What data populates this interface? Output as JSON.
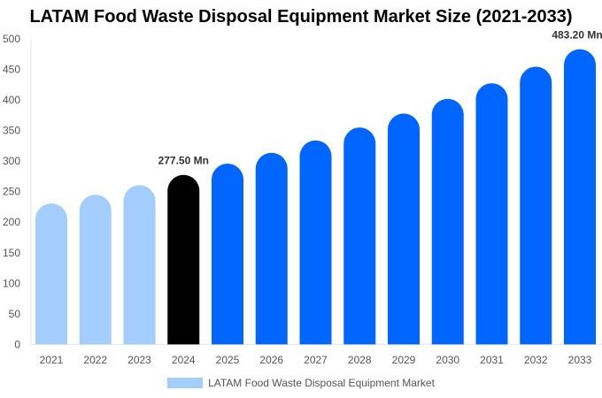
{
  "chart_data": {
    "type": "bar",
    "title": "LATAM Food Waste Disposal Equipment Market Size (2021-2033)",
    "categories": [
      "2021",
      "2022",
      "2023",
      "2024",
      "2025",
      "2026",
      "2027",
      "2028",
      "2029",
      "2030",
      "2031",
      "2032",
      "2033"
    ],
    "series": [
      {
        "name": "LATAM Food Waste Disposal Equipment Market",
        "values": [
          230.7,
          245.0,
          260.6,
          277.5,
          295.8,
          313.6,
          333.9,
          355.0,
          377.8,
          401.9,
          427.5,
          454.5,
          483.2
        ]
      }
    ],
    "ylim": [
      0,
      500
    ],
    "yticks": [
      0,
      50,
      100,
      150,
      200,
      250,
      300,
      350,
      400,
      450,
      500
    ],
    "grid": false,
    "legend": "bottom",
    "data_labels": [
      {
        "category": "2024",
        "text": "277.50 Mn"
      },
      {
        "category": "2033",
        "text": "483.20 Mn"
      }
    ],
    "colors": {
      "historical": "#a3cdfd",
      "base_year": "#000000",
      "forecast": "#0066ff"
    }
  }
}
